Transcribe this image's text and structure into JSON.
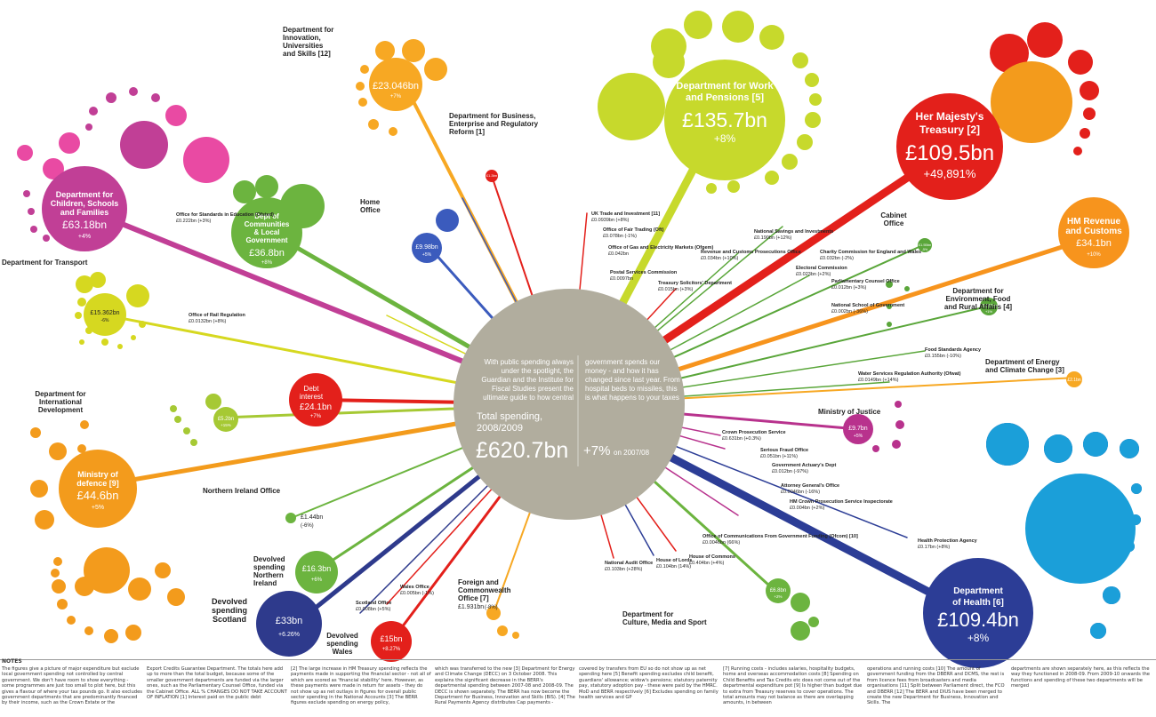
{
  "center": {
    "intro_left": [
      "With public spending always",
      "under the spotlight, the",
      "Guardian and the Institute for",
      "Fiscal Studies present the",
      "ultimate guide to how central"
    ],
    "intro_right": [
      "government spends our",
      "money - and how it has",
      "changed since last year. From",
      "hospital beds to missiles, this",
      "is what happens to your taxes"
    ],
    "label": "Total spending, 2008/2009",
    "label_l1": "Total spending,",
    "label_l2": "2008/2009",
    "total": "£620.7bn",
    "change": "+7%",
    "change_note": "on 2007/08"
  },
  "departments": [
    {
      "id": "work",
      "name": "Department for Work and Pensions",
      "name_l1": "Department for Work",
      "name_l2": "and Pensions [5]",
      "value": "£135.7bn",
      "change": "+8%",
      "color": "#c7d92c"
    },
    {
      "id": "treasury",
      "name": "Her Majesty's Treasury",
      "name_l1": "Her Majesty's",
      "name_l2": "Treasury [2]",
      "value": "£109.5bn",
      "change": "+49,891%",
      "color": "#e3201b"
    },
    {
      "id": "health",
      "name": "Department of Health",
      "name_l1": "Department",
      "name_l2": "of Health [6]",
      "value": "£109.4bn",
      "change": "+8%",
      "color": "#2c3d96"
    },
    {
      "id": "children",
      "name": "Department for Children, Schools and Families",
      "name_l1": "Department for",
      "name_l2": "Children, Schools",
      "name_l3": "and Families",
      "value": "£63.18bn",
      "change": "+4%",
      "color": "#c13f96"
    },
    {
      "id": "defence",
      "name": "Ministry of defence",
      "name_l1": "Ministry of",
      "name_l2": "defence [9]",
      "value": "£44.6bn",
      "change": "+5%",
      "color": "#f39b1c"
    },
    {
      "id": "communities",
      "name": "Dept of Communities & Local Government",
      "name_l1": "Dept of",
      "name_l2": "Communities",
      "name_l3": "& Local",
      "name_l4": "Government",
      "value": "£36.8bn",
      "change": "+8%",
      "color": "#6cb43f"
    },
    {
      "id": "hmrc",
      "name": "HM Revenue and Customs",
      "name_l1": "HM Revenue",
      "name_l2": "and Customs",
      "value": "£34.1bn",
      "change": "+10%",
      "color": "#f7941d"
    },
    {
      "id": "scotland",
      "name": "Devolved spending Scotland",
      "name_l1": "Devolved",
      "name_l2": "spending",
      "name_l3": "Scotland",
      "value": "£33bn",
      "change": "+6.26%",
      "color": "#2e3a8c"
    },
    {
      "id": "innovation",
      "name": "Department for Innovation, Universities and Skills",
      "name_l1": "Department for",
      "name_l2": "Innovation,",
      "name_l3": "Universities",
      "name_l4": "and Skills [12]",
      "value": "£23.046bn",
      "change": "+7%",
      "color": "#f7a823"
    },
    {
      "id": "debt",
      "name": "Debt interest",
      "name_l1": "Debt",
      "name_l2": "interest",
      "value": "£24.1bn",
      "change": "+7%",
      "color": "#e3201b"
    },
    {
      "id": "transport",
      "name": "Department for Transport",
      "value": "£15.362bn",
      "change": "-6%",
      "color": "#d6d820"
    },
    {
      "id": "nireland",
      "name": "Devolved spending Northern Ireland",
      "name_l1": "Devolved",
      "name_l2": "spending",
      "name_l3": "Northern",
      "name_l4": "Ireland",
      "value": "£16.3bn",
      "change": "+6%",
      "color": "#6cb43f"
    },
    {
      "id": "wales",
      "name": "Devolved spending Wales",
      "name_l1": "Devolved",
      "name_l2": "spending",
      "name_l3": "Wales",
      "value": "£15bn",
      "change": "+8.27%",
      "color": "#e3201b"
    },
    {
      "id": "homeoffice",
      "name": "Home Office",
      "name_l1": "Home",
      "name_l2": "Office",
      "value": "£9.98bn",
      "change": "+5%",
      "color": "#3b5bbd"
    },
    {
      "id": "justice",
      "name": "Ministry of Justice",
      "value": "£9.7bn",
      "change": "+5%",
      "color": "#b8328d"
    },
    {
      "id": "culture",
      "name": "Department for Culture, Media and Sport",
      "name_l1": "Department for",
      "name_l2": "Culture, Media and Sport",
      "value": "£6.8bn",
      "change": "+2%",
      "color": "#6cb43f"
    },
    {
      "id": "intldev",
      "name": "Department for International Development",
      "name_l1": "Department for",
      "name_l2": "International",
      "name_l3": "Development",
      "value": "£5.2bn",
      "change": "+15%",
      "color": "#a6c934"
    },
    {
      "id": "environment",
      "name": "Department for Environment, Food and Rural Affairs",
      "name_l1": "Department for",
      "name_l2": "Environment, Food",
      "name_l3": "and Rural Affairs [4]",
      "value": "£3.051bn",
      "change": "+1%",
      "color": "#5aa63a"
    },
    {
      "id": "energy",
      "name": "Department of Energy and Climate Change",
      "name_l1": "Department of Energy",
      "name_l2": "and Climate Change [3]",
      "value": "£2.1bn",
      "change": "",
      "color": "#f7a823"
    },
    {
      "id": "foreign",
      "name": "Foreign and Commonwealth Office",
      "name_l1": "Foreign and",
      "name_l2": "Commonwealth",
      "name_l3": "Office [7]",
      "value": "£1.931bn",
      "change": "(-8%)",
      "color": "#f7a823"
    },
    {
      "id": "cabinet",
      "name": "Cabinet Office",
      "name_l1": "Cabinet",
      "name_l2": "Office",
      "value": "£1.55bn",
      "change": "-5%",
      "color": "#5aa63a"
    },
    {
      "id": "bis",
      "name": "Department for Business, Enterprise and Regulatory Reform",
      "name_l1": "Department for Business,",
      "name_l2": "Enterprise and Regulatory",
      "name_l3": "Reform [1]",
      "value": "£1.3bn",
      "change": "",
      "color": "#e3201b"
    },
    {
      "id": "nio",
      "name": "Northern Ireland Office",
      "value": "£1.44bn",
      "change": "(-6%)",
      "color": "#6cb43f"
    }
  ],
  "small_bodies": [
    {
      "name": "UK Trade and Investment [11]",
      "value": "£0.0939bn (+8%)"
    },
    {
      "name": "Office of Fair Trading (Oft)",
      "value": "£0.078bn (-1%)"
    },
    {
      "name": "Office of Gas and Electricity Markets (Ofgem)",
      "value": "£0.042bn"
    },
    {
      "name": "Postal Services Commission",
      "value": "£0.0097bn"
    },
    {
      "name": "Treasury Solicitors' Department",
      "value": "£0.015bn (+3%)"
    },
    {
      "name": "Revenue and Customs Prosecutions Office",
      "value": "£0.034bn (+10%)"
    },
    {
      "name": "National Savings and Investments",
      "value": "£0.190bn (+12%)"
    },
    {
      "name": "Electoral Commission",
      "value": "£0.023bn (+2%)"
    },
    {
      "name": "Charity Commission for England and Wales",
      "value": "£0.032bn (-2%)"
    },
    {
      "name": "Parliamentary Counsel Office",
      "value": "£0.012bn (+3%)"
    },
    {
      "name": "National School of Government",
      "value": "£0.002bn (-36%)"
    },
    {
      "name": "Food Standards Agency",
      "value": "£0.155bn (-10%)"
    },
    {
      "name": "Water Services Regulation Authority (Ofwat)",
      "value": "£0.0149bn (+14%)"
    },
    {
      "name": "Crown Prosecution Service",
      "value": "£0.631bn (+0.3%)"
    },
    {
      "name": "Serious Fraud Office",
      "value": "£0.051bn (+11%)"
    },
    {
      "name": "Government Actuary's Dept",
      "value": "£0.012bn (-97%)"
    },
    {
      "name": "Attorney General's Office",
      "value": "£0.0046bn (-16%)"
    },
    {
      "name": "HM Crown Prosecution Service Inspectorate",
      "value": "£0.004bn (+2%)"
    },
    {
      "name": "Office of Communications From Government Funding (Ofcom) [10]",
      "value": "£0.0046bn (66%)"
    },
    {
      "name": "Health Protection Agency",
      "value": "£0.17bn (+8%)"
    },
    {
      "name": "National Audit Office",
      "value": "£0.103bn (+28%)"
    },
    {
      "name": "House of Lords",
      "value": "£0.104bn (14%)"
    },
    {
      "name": "House of Commons",
      "value": "£0.404bn (+4%)"
    },
    {
      "name": "Office of Rail Regulation",
      "value": "£0.0132bn (+8%)"
    },
    {
      "name": "Office for Standards in Education (Ofsted)",
      "value": "£0.222bn (+3%)"
    },
    {
      "name": "Wales Office",
      "value": "£0.005bn (-1%)"
    },
    {
      "name": "Scotland Office",
      "value": "£0.008bn (+5%)"
    }
  ],
  "footnotes_header": "NOTES",
  "footnotes": [
    "The figures give a picture of major expenditure but exclude local government spending not controlled by central government. We don't have room to show everything - some programmes are just too small to plot here, but this gives a flavour of where your tax pounds go. It also excludes government departments that are predominantly financed by their income, such as the Crown Estate or the",
    "Export Credits Guarantee Department. The totals here add up to more than the total budget, because some of the smaller government departments are funded via the larger ones, such as the Parliamentary Counsel Office, funded via the Cabinet Office. ALL % CHANGES DO NOT TAKE ACCOUNT OF INFLATION [1] Interest paid on the public debt",
    "[2] The large increase in HM Treasury spending reflects the payments made in supporting the financial sector - not all of which are scored as 'financial stability' here. However, as these payments were made in return for assets - they do not show up as net outlays in figures for overall public sector spending in the National Accounts [3] The BERR figures exclude spending on energy policy,",
    "which was transferred to the new [3] Department for Energy and Climate Change (DECC) on 3 October 2008. This explains the significant decrease in the BERR's departmental spending between 2007-08 and 2008-09. The DECC is shown separately. The BERR has now become the Department for Business, Innovation and Skills (BIS). [4] The Rural Payments Agency distributes Cap payments -",
    "covered by transfers from EU so do not show up as net spending here [5] Benefit spending excludes child benefit, guardians' allowance; widow's pensions; statutory paternity pay, statutory adoption pay - these were paid by the HMRC. MoD and BERR respectively [6] Excludes spending on family health services and GP",
    "[7] Running costs - includes salaries, hospitality budgets, home and overseas accommodation costs [8] Spending on Child Benefits and Tax Credits etc does not come out of the departmental expenditure pot [9] Is higher than budget due to extra from Treasury reserves to cover operations. The total amounts may not balance as there are overlapping amounts, in between",
    "operations and running costs [10] The amount of government funding from the DBERR and DCMS, the rest is from licence fees from broadcasters and media organisations [11] Split between Parliament direct, the FCO and DBERR [12] The BERR and DIUS have been merged to create the new Department for Business, Innovation and Skills. The",
    "departments are shown separately here, as this reflects the way they functioned in 2008-09. From 2009-10 onwards the functions and spending of these two departments will be merged"
  ]
}
